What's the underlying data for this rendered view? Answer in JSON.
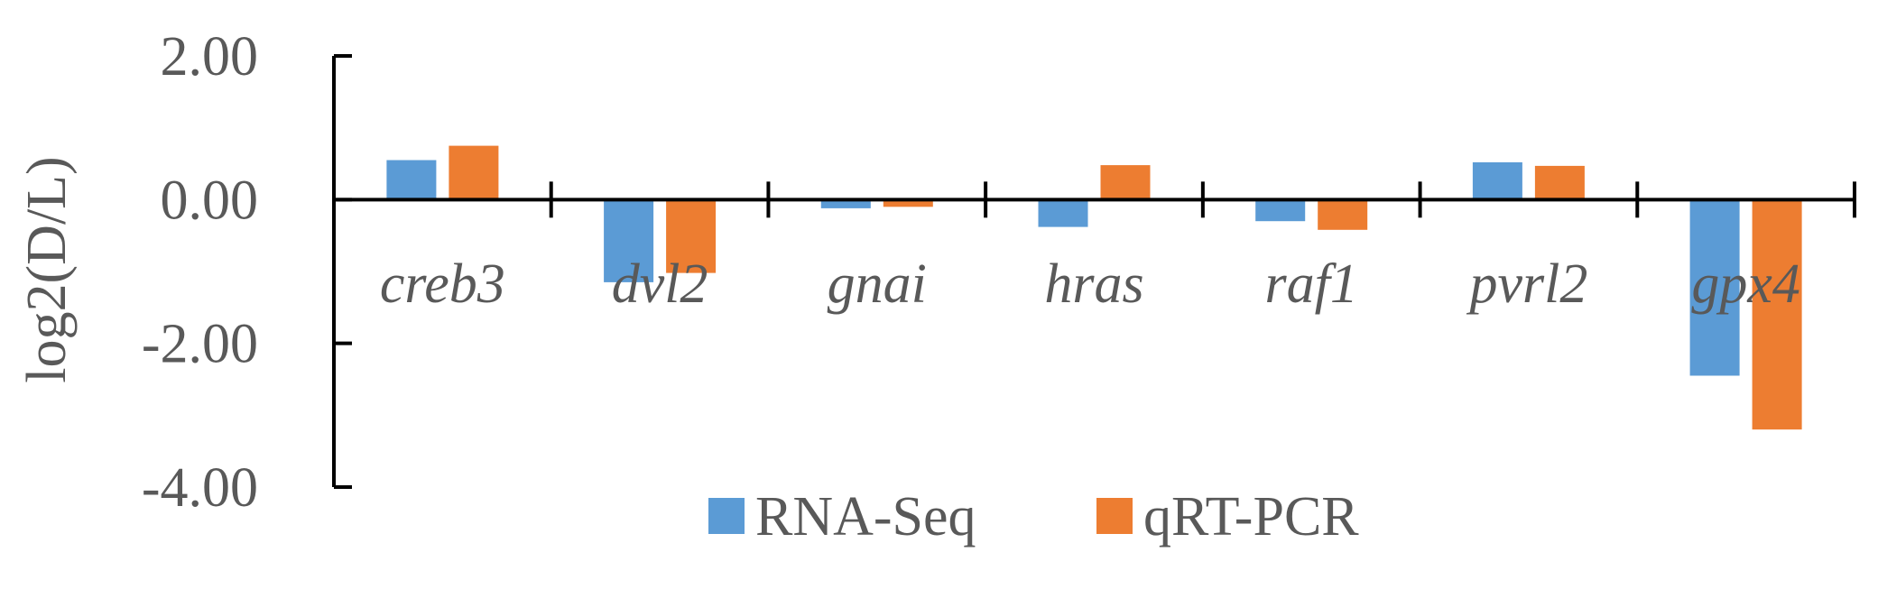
{
  "chart_data": {
    "type": "bar",
    "categories": [
      "creb3",
      "dvl2",
      "gnai",
      "hras",
      "raf1",
      "pvrl2",
      "gpx4"
    ],
    "series": [
      {
        "name": "RNA-Seq",
        "color": "#5B9BD5",
        "values": [
          0.55,
          -1.15,
          -0.12,
          -0.38,
          -0.3,
          0.52,
          -2.45
        ]
      },
      {
        "name": "qRT-PCR",
        "color": "#ED7D31",
        "values": [
          0.75,
          -1.02,
          -0.1,
          0.48,
          -0.42,
          0.47,
          -3.2
        ]
      }
    ],
    "title": "",
    "xlabel": "",
    "ylabel": "log2(D/L)",
    "ylim": [
      -4,
      2
    ],
    "yticks": [
      2,
      0,
      -2,
      -4
    ],
    "ytick_labels": [
      "2.00",
      "0.00",
      "-2.00",
      "-4.00"
    ],
    "grid": false,
    "legend_position": "bottom",
    "axis_color": "#000000",
    "text_color": "#595959"
  }
}
